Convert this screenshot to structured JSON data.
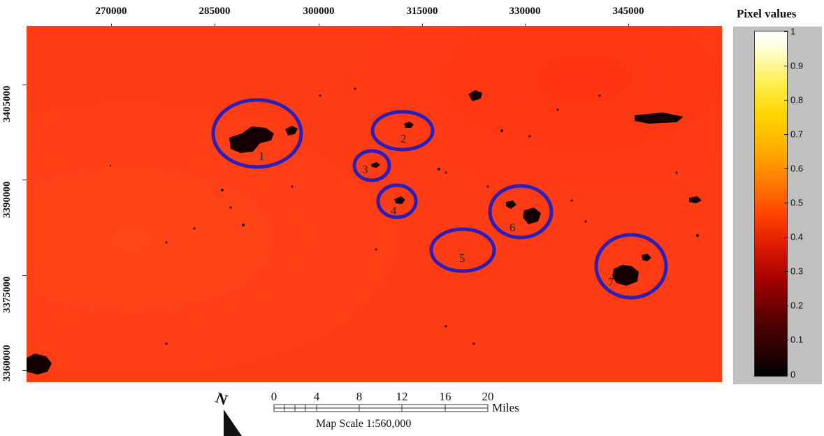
{
  "map": {
    "x_ticks": [
      "270000",
      "285000",
      "300000",
      "315000",
      "330000",
      "345000"
    ],
    "y_ticks": [
      "3405000",
      "3390000",
      "3375000",
      "3360000"
    ],
    "base_color": "#ff3c14",
    "circle_color": "#2a1fb8",
    "regions": [
      {
        "label": "1"
      },
      {
        "label": "2"
      },
      {
        "label": "3"
      },
      {
        "label": "4"
      },
      {
        "label": "5"
      },
      {
        "label": "6"
      },
      {
        "label": "7"
      }
    ]
  },
  "legend": {
    "title": "Pixel values",
    "ticks": [
      "1",
      "0.9",
      "0.8",
      "0.7",
      "0.6",
      "0.5",
      "0.4",
      "0.3",
      "0.2",
      "0.1",
      "0"
    ],
    "colormap": "hot"
  },
  "scale": {
    "numbers": [
      "0",
      "4",
      "8",
      "12",
      "16",
      "20"
    ],
    "units": "Miles",
    "caption": "Map Scale 1:560,000"
  },
  "north": {
    "label": "N"
  }
}
